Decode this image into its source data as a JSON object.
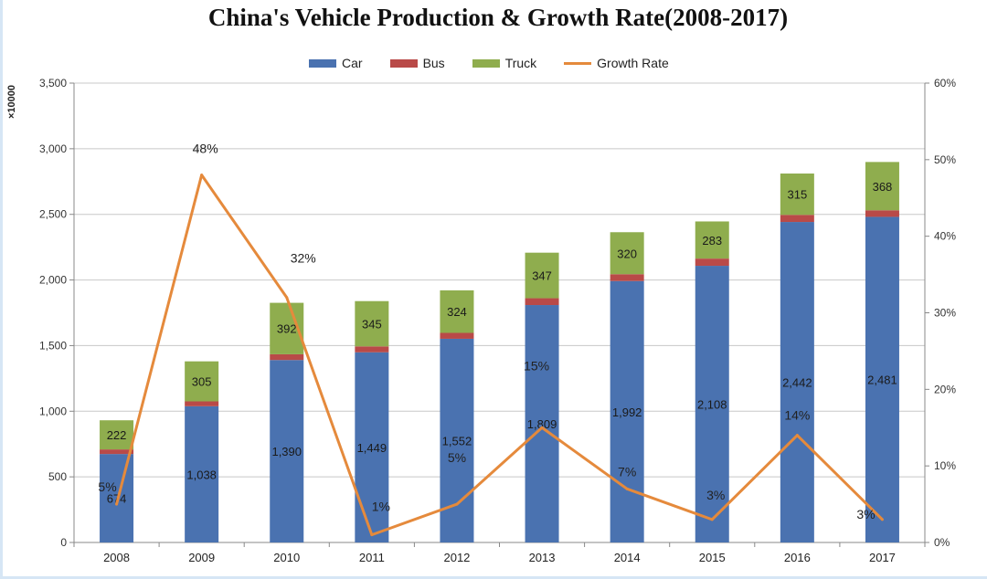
{
  "chart_data": {
    "type": "bar",
    "title": "China's Vehicle Production & Growth Rate(2008-2017)",
    "y_unit": "×10000",
    "categories": [
      "2008",
      "2009",
      "2010",
      "2011",
      "2012",
      "2013",
      "2014",
      "2015",
      "2016",
      "2017"
    ],
    "series": [
      {
        "name": "Car",
        "type": "bar",
        "color": "#4a72b0",
        "values": [
          674,
          1038,
          1390,
          1449,
          1552,
          1809,
          1992,
          2108,
          2442,
          2481
        ],
        "labels": [
          "674",
          "1,038",
          "1,390",
          "1,449",
          "1,552",
          "1,809",
          "1,992",
          "2,108",
          "2,442",
          "2,481"
        ]
      },
      {
        "name": "Bus",
        "type": "bar",
        "color": "#b94a48",
        "values": [
          35,
          37,
          44,
          45,
          45,
          52,
          52,
          55,
          54,
          50
        ]
      },
      {
        "name": "Truck",
        "type": "bar",
        "color": "#8fad4e",
        "values": [
          222,
          305,
          392,
          345,
          324,
          347,
          320,
          283,
          315,
          368
        ],
        "labels": [
          "222",
          "305",
          "392",
          "345",
          "324",
          "347",
          "320",
          "283",
          "315",
          "368"
        ]
      },
      {
        "name": "Growth Rate",
        "type": "line",
        "axis": "right",
        "color": "#e58a3c",
        "values": [
          5,
          48,
          32,
          1,
          5,
          15,
          7,
          3,
          14,
          3
        ],
        "labels": [
          "5%",
          "48%",
          "32%",
          "1%",
          "5%",
          "15%",
          "7%",
          "3%",
          "14%",
          "3%"
        ]
      }
    ],
    "ylim": [
      0,
      3500
    ],
    "y_ticks": [
      "0",
      "500",
      "1,000",
      "1,500",
      "2,000",
      "2,500",
      "3,000",
      "3,500"
    ],
    "y2lim": [
      0,
      60
    ],
    "y2_ticks": [
      "0%",
      "10%",
      "20%",
      "30%",
      "40%",
      "50%",
      "60%"
    ],
    "grid": true,
    "legend_position": "top"
  }
}
